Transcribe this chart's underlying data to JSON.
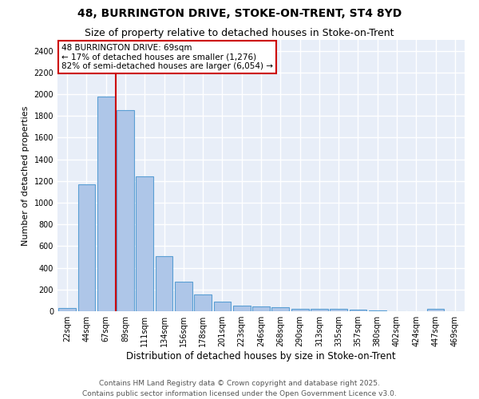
{
  "title_line1": "48, BURRINGTON DRIVE, STOKE-ON-TRENT, ST4 8YD",
  "title_line2": "Size of property relative to detached houses in Stoke-on-Trent",
  "xlabel": "Distribution of detached houses by size in Stoke-on-Trent",
  "ylabel": "Number of detached properties",
  "categories": [
    "22sqm",
    "44sqm",
    "67sqm",
    "89sqm",
    "111sqm",
    "134sqm",
    "156sqm",
    "178sqm",
    "201sqm",
    "223sqm",
    "246sqm",
    "268sqm",
    "290sqm",
    "313sqm",
    "335sqm",
    "357sqm",
    "380sqm",
    "402sqm",
    "424sqm",
    "447sqm",
    "469sqm"
  ],
  "values": [
    30,
    1170,
    1980,
    1850,
    1240,
    510,
    270,
    155,
    90,
    50,
    45,
    35,
    25,
    20,
    20,
    15,
    5,
    0,
    0,
    20,
    0
  ],
  "bar_color": "#aec6e8",
  "bar_edge_color": "#5a9fd4",
  "background_color": "#e8eef8",
  "grid_color": "#ffffff",
  "annotation_line1": "48 BURRINGTON DRIVE: 69sqm",
  "annotation_line2": "← 17% of detached houses are smaller (1,276)",
  "annotation_line3": "82% of semi-detached houses are larger (6,054) →",
  "vline_x": 2.5,
  "vline_color": "#cc0000",
  "ylim": [
    0,
    2500
  ],
  "yticks": [
    0,
    200,
    400,
    600,
    800,
    1000,
    1200,
    1400,
    1600,
    1800,
    2000,
    2200,
    2400
  ],
  "footer_text": "Contains HM Land Registry data © Crown copyright and database right 2025.\nContains public sector information licensed under the Open Government Licence v3.0.",
  "title1_fontsize": 10,
  "title2_fontsize": 9,
  "xlabel_fontsize": 8.5,
  "ylabel_fontsize": 8,
  "tick_fontsize": 7,
  "annotation_fontsize": 7.5,
  "footer_fontsize": 6.5
}
